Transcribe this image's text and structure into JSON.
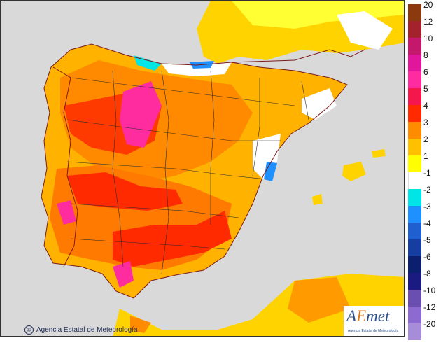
{
  "map": {
    "credit": "Agencia Estatal de Meteorología",
    "logo_text": "AEmet",
    "logo_subtext": "Agencia Estatal de Meteorología"
  },
  "legend": {
    "items": [
      {
        "label": "20",
        "color": "#8b3a0f"
      },
      {
        "label": "12",
        "color": "#a3222c"
      },
      {
        "label": "10",
        "color": "#c4186c"
      },
      {
        "label": "8",
        "color": "#e0179a"
      },
      {
        "label": "6",
        "color": "#ff2ca0"
      },
      {
        "label": "5",
        "color": "#f5174b"
      },
      {
        "label": "4",
        "color": "#ff2a00"
      },
      {
        "label": "3",
        "color": "#ff8c00"
      },
      {
        "label": "2",
        "color": "#ffc000"
      },
      {
        "label": "1",
        "color": "#ffff00"
      },
      {
        "label": "-1",
        "color": "#ffffff"
      },
      {
        "label": "-2",
        "color": "#00e5e5"
      },
      {
        "label": "-3",
        "color": "#1e90ff"
      },
      {
        "label": "-4",
        "color": "#1f5fcf"
      },
      {
        "label": "-5",
        "color": "#163ea0"
      },
      {
        "label": "-6",
        "color": "#0b1f6e"
      },
      {
        "label": "-8",
        "color": "#1a1a80"
      },
      {
        "label": "-10",
        "color": "#6a4fb0"
      },
      {
        "label": "-12",
        "color": "#8c6ad0"
      },
      {
        "label": "-20",
        "color": "#a78cd8"
      }
    ]
  }
}
